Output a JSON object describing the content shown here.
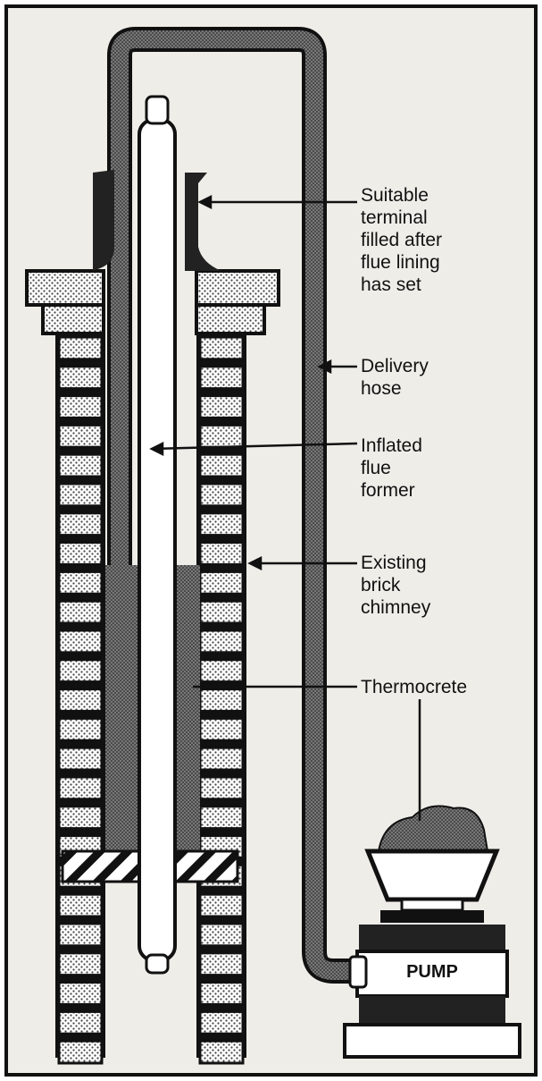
{
  "labels": {
    "terminal": "Suitable\nterminal\nfilled after\nflue lining\nhas set",
    "delivery_hose": "Delivery\nhose",
    "flue_former": "Inflated\nflue\nformer",
    "chimney": "Existing\nbrick\nchimney",
    "thermocrete": "Thermocrete",
    "pump": "PUMP"
  },
  "colors": {
    "background": "#ffffff",
    "panel": "#efede8",
    "ink": "#111111",
    "brick_dots": "#cfcfcf",
    "thermocrete": "#5e5e5e",
    "hose": "#6a6a6a"
  }
}
